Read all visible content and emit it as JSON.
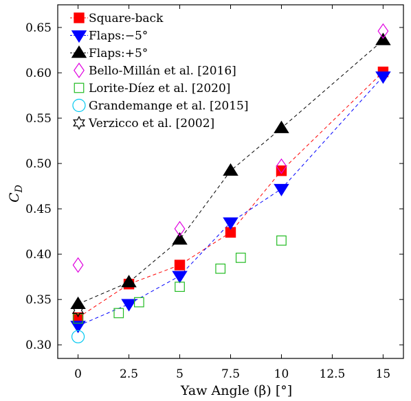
{
  "chart_data": {
    "type": "scatter",
    "xlabel": "Yaw Angle (β) [°]",
    "ylabel": "C_D",
    "xlim": [
      -1,
      16
    ],
    "ylim": [
      0.285,
      0.675
    ],
    "xticks": [
      0,
      2.5,
      5,
      7.5,
      10,
      12.5,
      15
    ],
    "xtick_labels": [
      "0",
      "2.5",
      "5",
      "7.5",
      "10",
      "12.5",
      "15"
    ],
    "yticks": [
      0.3,
      0.35,
      0.4,
      0.45,
      0.5,
      0.55,
      0.6,
      0.65
    ],
    "ytick_labels": [
      "0.30",
      "0.35",
      "0.40",
      "0.45",
      "0.50",
      "0.55",
      "0.60",
      "0.65"
    ],
    "grid": false,
    "legend_position": "top-left",
    "series": [
      {
        "name": "Square-back",
        "marker": "square",
        "color": "#ff0000",
        "fill": "#ff0000",
        "line_color": "#ff0000",
        "line": "dashed",
        "x": [
          0,
          2.5,
          5,
          7.5,
          10,
          15
        ],
        "y": [
          0.33,
          0.367,
          0.388,
          0.424,
          0.492,
          0.601
        ]
      },
      {
        "name": "Flaps:−5°",
        "marker": "triangle-down",
        "color": "#0000ff",
        "fill": "#0000ff",
        "line_color": "#0000ff",
        "line": "dashed",
        "x": [
          0,
          2.5,
          5,
          7.5,
          10,
          15
        ],
        "y": [
          0.321,
          0.345,
          0.376,
          0.435,
          0.472,
          0.596
        ]
      },
      {
        "name": "Flaps:+5°",
        "marker": "triangle-up",
        "color": "#000000",
        "fill": "#000000",
        "line_color": "#000000",
        "line": "dashed",
        "x": [
          0,
          2.5,
          5,
          7.5,
          10,
          15
        ],
        "y": [
          0.345,
          0.369,
          0.416,
          0.492,
          0.539,
          0.636
        ]
      },
      {
        "name": "Bello-Millán et al. [2016]",
        "marker": "diamond",
        "color": "#e000e0",
        "fill": "none",
        "line": "none",
        "x": [
          0,
          5,
          10,
          15
        ],
        "y": [
          0.388,
          0.428,
          0.497,
          0.646
        ]
      },
      {
        "name": "Lorite-Díez et al. [2020]",
        "marker": "square-open",
        "color": "#22bb22",
        "fill": "none",
        "line": "none",
        "x": [
          0,
          2,
          3,
          5,
          7,
          8,
          10
        ],
        "y": [
          0.329,
          0.335,
          0.347,
          0.364,
          0.384,
          0.396,
          0.415
        ]
      },
      {
        "name": "Grandemange et al. [2015]",
        "marker": "circle",
        "color": "#00c8f0",
        "fill": "none",
        "line": "none",
        "x": [
          0
        ],
        "y": [
          0.309
        ]
      },
      {
        "name": "Verzicco et al. [2002]",
        "marker": "hexagram",
        "color": "#000000",
        "fill": "none",
        "line": "none",
        "x": [
          0
        ],
        "y": [
          0.338
        ]
      }
    ]
  }
}
